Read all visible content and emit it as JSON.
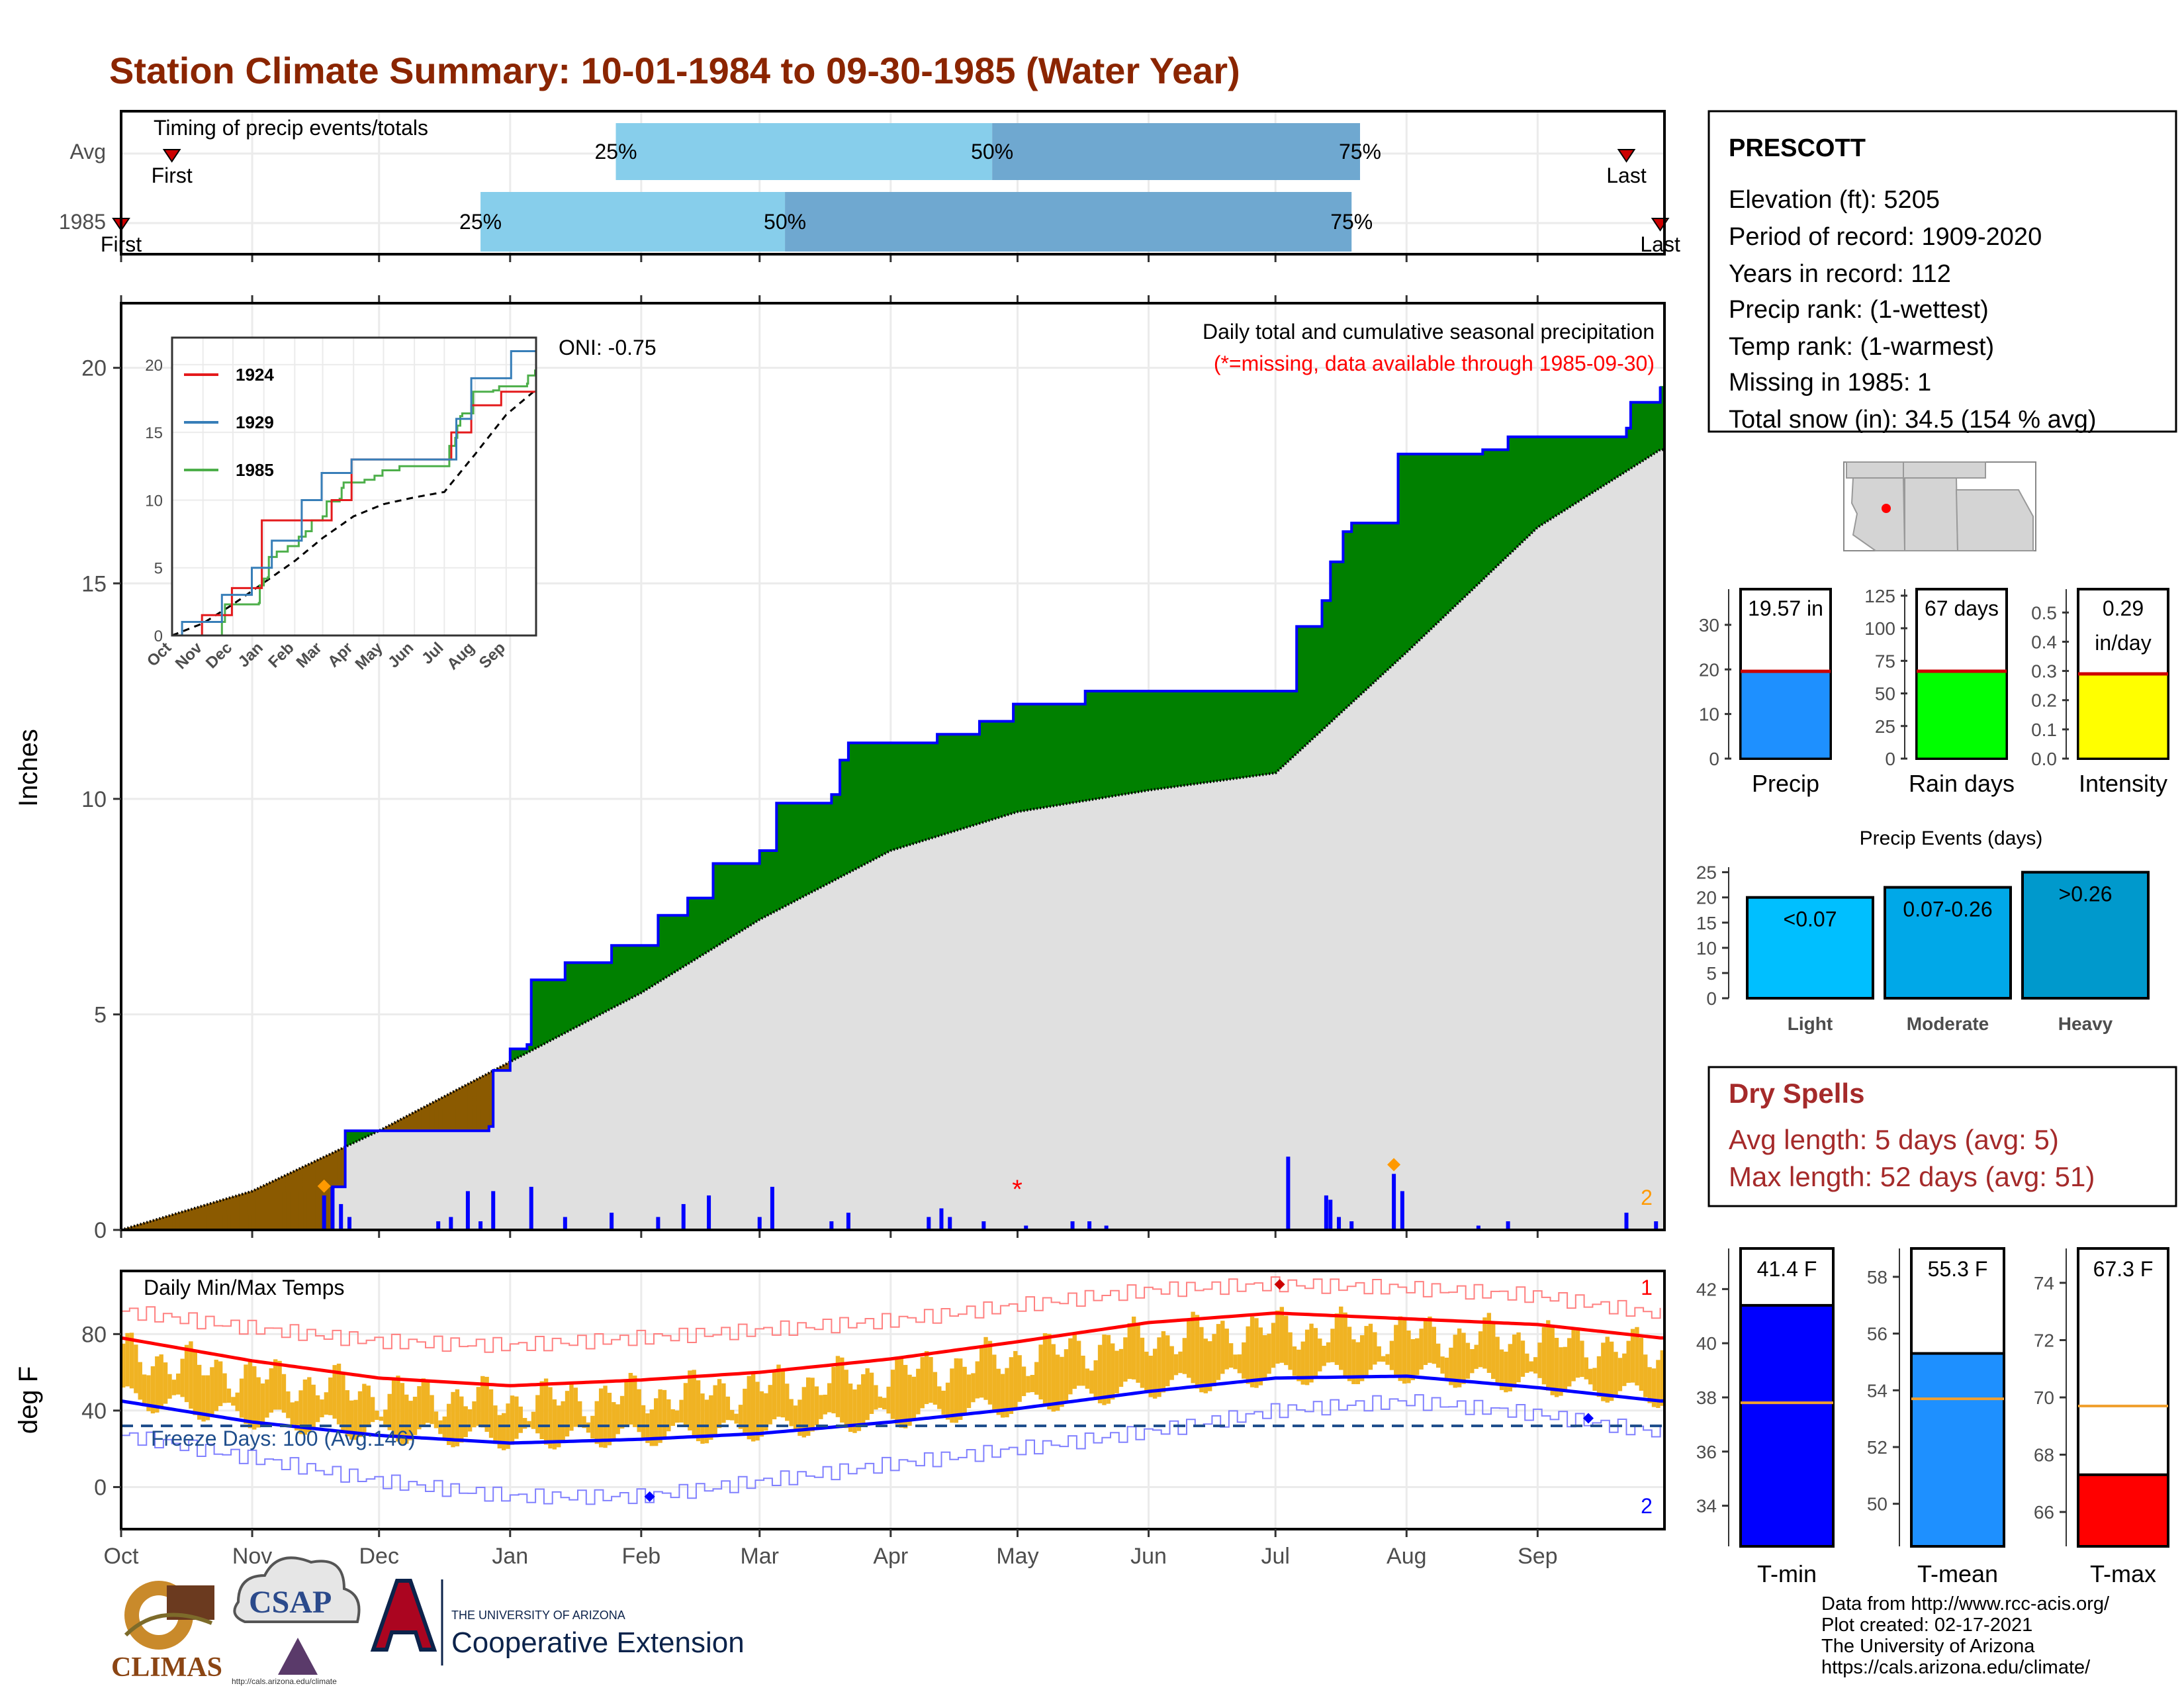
{
  "title": "Station Climate Summary: 10-01-1984 to 09-30-1985 (Water Year)",
  "timing": {
    "label": "Timing of precip events/totals",
    "rows": [
      {
        "label": "Avg",
        "first_label": "First",
        "last_label": "Last",
        "p25": "25%",
        "p50": "50%",
        "p75": "75%",
        "first_date": "1984-10-13",
        "p25_date": "1985-01-26",
        "p50_date": "1985-04-25",
        "p75_date": "1985-07-21",
        "last_date": "1985-09-22"
      },
      {
        "label": "1985",
        "first_label": "First",
        "last_label": "Last",
        "p25": "25%",
        "p50": "50%",
        "p75": "75%",
        "first_date": "1984-10-01",
        "p25_date": "1984-12-25",
        "p50_date": "1985-03-07",
        "p75_date": "1985-07-19",
        "last_date": "1985-09-30"
      }
    ]
  },
  "precip_panel": {
    "ylabel": "Inches",
    "oni": "ONI: -0.75",
    "caption1": "Daily total and cumulative seasonal precipitation",
    "caption2": "(*=missing, data available through 1985-09-30)",
    "missing_marker": "*",
    "count_label": "2",
    "y_ticks": [
      "0",
      "5",
      "10",
      "15",
      "20"
    ],
    "x_ticks": [
      "Oct",
      "Nov",
      "Dec",
      "Jan",
      "Feb",
      "Mar",
      "Apr",
      "May",
      "Jun",
      "Jul",
      "Aug",
      "Sep"
    ]
  },
  "inset": {
    "y_ticks": [
      "0",
      "5",
      "10",
      "15",
      "20"
    ],
    "x_ticks": [
      "Oct",
      "Nov",
      "Dec",
      "Jan",
      "Feb",
      "Mar",
      "Apr",
      "May",
      "Jun",
      "Jul",
      "Aug",
      "Sep"
    ],
    "legend": [
      {
        "name": "1924",
        "color": "#e41a1c"
      },
      {
        "name": "1929",
        "color": "#377eb8"
      },
      {
        "name": "1985",
        "color": "#4daf4a"
      }
    ]
  },
  "temp_panel": {
    "ylabel": "deg F",
    "label": "Daily Min/Max Temps",
    "freeze": "Freeze Days: 100 (Avg:146)",
    "record_high_count": "1",
    "record_low_count": "2",
    "y_ticks": [
      "0",
      "40",
      "80"
    ],
    "x_ticks": [
      "Oct",
      "Nov",
      "Dec",
      "Jan",
      "Feb",
      "Mar",
      "Apr",
      "May",
      "Jun",
      "Jul",
      "Aug",
      "Sep"
    ]
  },
  "station": {
    "name": "PRESCOTT",
    "elevation": "Elevation (ft): 5205",
    "period": "Period of record: 1909-2020",
    "years": "Years in record: 112",
    "precip_rank": "Precip rank:  (1-wettest)",
    "temp_rank": "Temp rank:  (1-warmest)",
    "missing": "Missing in 1985: 1",
    "snow": "Total snow (in): 34.5 (154 % avg)"
  },
  "mini_bars": [
    {
      "label": "Precip",
      "value_text": "19.57 in",
      "value": 19.57,
      "ymax": 38,
      "ticks": [
        "0",
        "10",
        "20",
        "30"
      ],
      "color": "#1e90ff"
    },
    {
      "label": "Rain days",
      "value_text": "67 days",
      "value": 67,
      "ymax": 130,
      "ticks": [
        "0",
        "25",
        "50",
        "75",
        "100",
        "125"
      ],
      "color": "#00ff00"
    },
    {
      "label": "Intensity",
      "value_text": "0.29",
      "value_text2": "in/day",
      "value": 0.29,
      "ymax": 0.58,
      "ticks": [
        "0.0",
        "0.1",
        "0.2",
        "0.3",
        "0.4",
        "0.5"
      ],
      "color": "#ffff00"
    }
  ],
  "precip_events": {
    "title": "Precip Events (days)",
    "ticks": [
      "0",
      "5",
      "10",
      "15",
      "20",
      "25"
    ],
    "bars": [
      {
        "category": "Light",
        "range": "<0.07",
        "value": 20,
        "color": "#00bfff"
      },
      {
        "category": "Moderate",
        "range": "0.07-0.26",
        "value": 22,
        "color": "#00a8e8"
      },
      {
        "category": "Heavy",
        "range": ">0.26",
        "value": 25,
        "color": "#0099cc"
      }
    ]
  },
  "dry_spells": {
    "title": "Dry Spells",
    "avg": "Avg length: 5 days (avg: 5)",
    "max": "Max length: 52 days (avg: 51)"
  },
  "temp_bars": [
    {
      "label": "T-min",
      "value_text": "41.4 F",
      "value": 41.4,
      "avg": 37.8,
      "ymin": 32.5,
      "ymax": 43.5,
      "ticks": [
        "34",
        "36",
        "38",
        "40",
        "42"
      ],
      "color": "#0000ff"
    },
    {
      "label": "T-mean",
      "value_text": "55.3 F",
      "value": 55.3,
      "avg": 53.7,
      "ymin": 48.5,
      "ymax": 59,
      "ticks": [
        "50",
        "52",
        "54",
        "56",
        "58"
      ],
      "color": "#1e90ff"
    },
    {
      "label": "T-max",
      "value_text": "67.3 F",
      "value": 67.3,
      "avg": 69.7,
      "ymin": 64.8,
      "ymax": 75.2,
      "ticks": [
        "66",
        "68",
        "70",
        "72",
        "74"
      ],
      "color": "#ff0000"
    }
  ],
  "footer": {
    "line1": "Data from http://www.rcc-acis.org/",
    "line2": "Plot created: 02-17-2021",
    "line3": "The University of Arizona",
    "line4": "https://cals.arizona.edu/climate/"
  },
  "logos": {
    "climas": "CLIMAS",
    "csap": "CSAP",
    "csap_url": "http://cals.arizona.edu/climate",
    "ua_small": "THE UNIVERSITY OF ARIZONA",
    "ua_big": "Cooperative Extension"
  },
  "chart_data": {
    "type": "area",
    "title": "Station Climate Summary: 10-01-1984 to 09-30-1985 (Water Year)",
    "ylabel": "Inches",
    "ylim": [
      0,
      21.5
    ],
    "cumulative_1985": [
      {
        "date": "1984-10-01",
        "value": 0.0
      },
      {
        "date": "1984-11-19",
        "value": 0.0
      },
      {
        "date": "1984-11-20",
        "value": 1.0
      },
      {
        "date": "1984-11-23",
        "value": 2.3
      },
      {
        "date": "1984-12-27",
        "value": 2.4
      },
      {
        "date": "1984-12-28",
        "value": 3.7
      },
      {
        "date": "1985-01-01",
        "value": 4.2
      },
      {
        "date": "1985-01-05",
        "value": 4.3
      },
      {
        "date": "1985-01-06",
        "value": 5.8
      },
      {
        "date": "1985-01-14",
        "value": 6.2
      },
      {
        "date": "1985-01-25",
        "value": 6.6
      },
      {
        "date": "1985-02-05",
        "value": 7.3
      },
      {
        "date": "1985-02-12",
        "value": 7.7
      },
      {
        "date": "1985-02-18",
        "value": 8.5
      },
      {
        "date": "1985-03-01",
        "value": 8.8
      },
      {
        "date": "1985-03-05",
        "value": 9.9
      },
      {
        "date": "1985-03-18",
        "value": 10.1
      },
      {
        "date": "1985-03-20",
        "value": 10.9
      },
      {
        "date": "1985-03-22",
        "value": 11.3
      },
      {
        "date": "1985-04-12",
        "value": 11.5
      },
      {
        "date": "1985-04-22",
        "value": 11.8
      },
      {
        "date": "1985-04-30",
        "value": 12.2
      },
      {
        "date": "1985-05-17",
        "value": 12.5
      },
      {
        "date": "1985-07-05",
        "value": 12.5
      },
      {
        "date": "1985-07-06",
        "value": 14.0
      },
      {
        "date": "1985-07-12",
        "value": 14.6
      },
      {
        "date": "1985-07-14",
        "value": 15.5
      },
      {
        "date": "1985-07-17",
        "value": 16.2
      },
      {
        "date": "1985-07-19",
        "value": 16.4
      },
      {
        "date": "1985-07-30",
        "value": 18.0
      },
      {
        "date": "1985-08-19",
        "value": 18.1
      },
      {
        "date": "1985-08-25",
        "value": 18.4
      },
      {
        "date": "1985-09-22",
        "value": 18.6
      },
      {
        "date": "1985-09-23",
        "value": 19.2
      },
      {
        "date": "1985-09-30",
        "value": 19.57
      }
    ],
    "cumulative_avg": [
      {
        "date": "1984-10-01",
        "value": 0.0
      },
      {
        "date": "1984-11-01",
        "value": 0.9
      },
      {
        "date": "1984-12-01",
        "value": 2.3
      },
      {
        "date": "1985-01-01",
        "value": 3.9
      },
      {
        "date": "1985-02-01",
        "value": 5.5
      },
      {
        "date": "1985-03-01",
        "value": 7.2
      },
      {
        "date": "1985-04-01",
        "value": 8.8
      },
      {
        "date": "1985-05-01",
        "value": 9.7
      },
      {
        "date": "1985-06-01",
        "value": 10.2
      },
      {
        "date": "1985-07-01",
        "value": 10.6
      },
      {
        "date": "1985-08-01",
        "value": 13.4
      },
      {
        "date": "1985-09-01",
        "value": 16.3
      },
      {
        "date": "1985-09-30",
        "value": 18.1
      }
    ],
    "daily_precip": [
      {
        "date": "1984-11-18",
        "value": 0.8
      },
      {
        "date": "1984-11-20",
        "value": 1.0
      },
      {
        "date": "1984-11-22",
        "value": 0.6
      },
      {
        "date": "1984-11-24",
        "value": 0.3
      },
      {
        "date": "1984-12-15",
        "value": 0.2
      },
      {
        "date": "1984-12-18",
        "value": 0.3
      },
      {
        "date": "1984-12-22",
        "value": 0.9
      },
      {
        "date": "1984-12-25",
        "value": 0.2
      },
      {
        "date": "1984-12-28",
        "value": 0.9
      },
      {
        "date": "1985-01-06",
        "value": 1.0
      },
      {
        "date": "1985-01-14",
        "value": 0.3
      },
      {
        "date": "1985-01-25",
        "value": 0.4
      },
      {
        "date": "1985-02-05",
        "value": 0.3
      },
      {
        "date": "1985-02-11",
        "value": 0.6
      },
      {
        "date": "1985-02-17",
        "value": 0.8
      },
      {
        "date": "1985-03-01",
        "value": 0.3
      },
      {
        "date": "1985-03-04",
        "value": 1.0
      },
      {
        "date": "1985-03-18",
        "value": 0.2
      },
      {
        "date": "1985-03-22",
        "value": 0.4
      },
      {
        "date": "1985-04-10",
        "value": 0.3
      },
      {
        "date": "1985-04-13",
        "value": 0.5
      },
      {
        "date": "1985-04-15",
        "value": 0.3
      },
      {
        "date": "1985-04-23",
        "value": 0.2
      },
      {
        "date": "1985-05-03",
        "value": 0.1
      },
      {
        "date": "1985-05-14",
        "value": 0.2
      },
      {
        "date": "1985-05-18",
        "value": 0.2
      },
      {
        "date": "1985-05-22",
        "value": 0.1
      },
      {
        "date": "1985-07-04",
        "value": 1.7
      },
      {
        "date": "1985-07-13",
        "value": 0.8
      },
      {
        "date": "1985-07-14",
        "value": 0.7
      },
      {
        "date": "1985-07-16",
        "value": 0.3
      },
      {
        "date": "1985-07-19",
        "value": 0.2
      },
      {
        "date": "1985-07-29",
        "value": 1.3
      },
      {
        "date": "1985-07-31",
        "value": 0.9
      },
      {
        "date": "1985-08-18",
        "value": 0.1
      },
      {
        "date": "1985-08-25",
        "value": 0.2
      },
      {
        "date": "1985-09-22",
        "value": 0.4
      },
      {
        "date": "1985-09-29",
        "value": 0.2
      }
    ],
    "temps": {
      "ylabel": "deg F",
      "ylim": [
        -22,
        113
      ],
      "avg_max": [
        {
          "date": "1984-10-01",
          "value": 78
        },
        {
          "date": "1984-11-01",
          "value": 66
        },
        {
          "date": "1984-12-01",
          "value": 57
        },
        {
          "date": "1985-01-01",
          "value": 53
        },
        {
          "date": "1985-02-01",
          "value": 56
        },
        {
          "date": "1985-03-01",
          "value": 60
        },
        {
          "date": "1985-04-01",
          "value": 67
        },
        {
          "date": "1985-05-01",
          "value": 76
        },
        {
          "date": "1985-06-01",
          "value": 86
        },
        {
          "date": "1985-07-01",
          "value": 91
        },
        {
          "date": "1985-08-01",
          "value": 88
        },
        {
          "date": "1985-09-01",
          "value": 85
        },
        {
          "date": "1985-09-30",
          "value": 78
        }
      ],
      "avg_min": [
        {
          "date": "1984-10-01",
          "value": 45
        },
        {
          "date": "1984-11-01",
          "value": 34
        },
        {
          "date": "1984-12-01",
          "value": 27
        },
        {
          "date": "1985-01-01",
          "value": 23
        },
        {
          "date": "1985-02-01",
          "value": 25
        },
        {
          "date": "1985-03-01",
          "value": 28
        },
        {
          "date": "1985-04-01",
          "value": 34
        },
        {
          "date": "1985-05-01",
          "value": 41
        },
        {
          "date": "1985-06-01",
          "value": 50
        },
        {
          "date": "1985-07-01",
          "value": 57
        },
        {
          "date": "1985-08-01",
          "value": 58
        },
        {
          "date": "1985-09-01",
          "value": 52
        },
        {
          "date": "1985-09-30",
          "value": 45
        }
      ],
      "record_max": [
        {
          "date": "1984-10-01",
          "value": 92
        },
        {
          "date": "1984-11-01",
          "value": 83
        },
        {
          "date": "1984-12-01",
          "value": 76
        },
        {
          "date": "1985-01-01",
          "value": 74
        },
        {
          "date": "1985-02-01",
          "value": 78
        },
        {
          "date": "1985-03-01",
          "value": 82
        },
        {
          "date": "1985-04-01",
          "value": 87
        },
        {
          "date": "1985-05-01",
          "value": 95
        },
        {
          "date": "1985-06-01",
          "value": 103
        },
        {
          "date": "1985-07-01",
          "value": 106
        },
        {
          "date": "1985-08-01",
          "value": 104
        },
        {
          "date": "1985-09-01",
          "value": 100
        },
        {
          "date": "1985-09-30",
          "value": 90
        }
      ],
      "record_min": [
        {
          "date": "1984-10-01",
          "value": 27
        },
        {
          "date": "1984-11-01",
          "value": 15
        },
        {
          "date": "1984-12-01",
          "value": 3
        },
        {
          "date": "1985-01-01",
          "value": -5
        },
        {
          "date": "1985-02-01",
          "value": -5
        },
        {
          "date": "1985-03-01",
          "value": 3
        },
        {
          "date": "1985-04-01",
          "value": 12
        },
        {
          "date": "1985-05-01",
          "value": 20
        },
        {
          "date": "1985-06-01",
          "value": 29
        },
        {
          "date": "1985-07-01",
          "value": 40
        },
        {
          "date": "1985-08-01",
          "value": 45
        },
        {
          "date": "1985-09-01",
          "value": 38
        },
        {
          "date": "1985-09-30",
          "value": 28
        }
      ],
      "freezing_line": 32
    }
  }
}
